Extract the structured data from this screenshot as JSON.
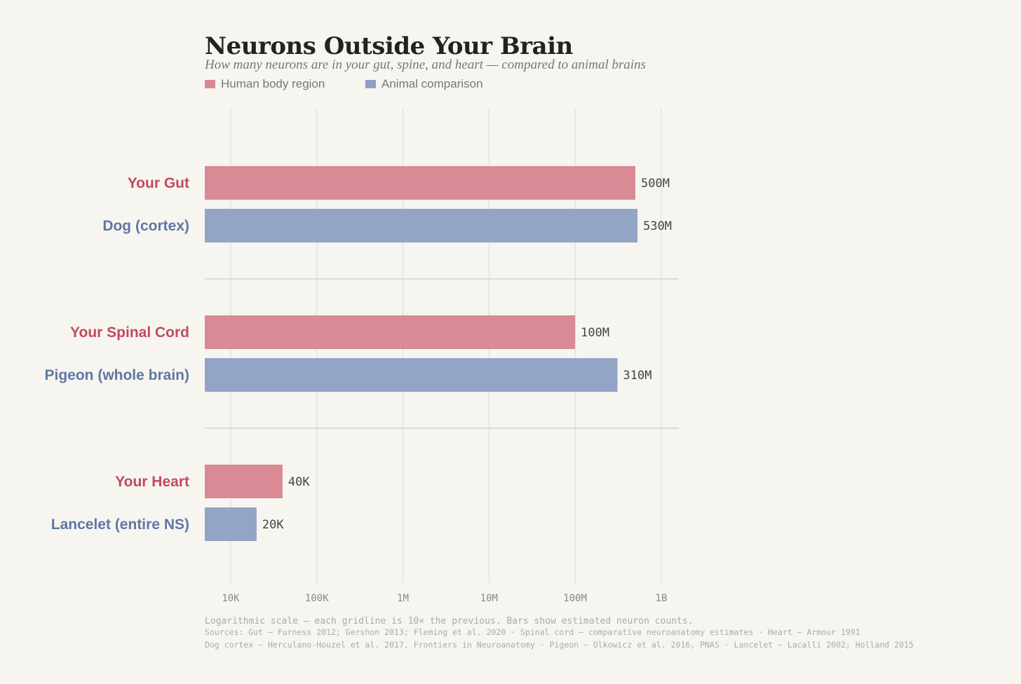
{
  "header": {
    "title": "Neurons Outside Your Brain",
    "subtitle": "How many neurons are in your gut, spine, and heart — compared to animal brains"
  },
  "legend": [
    {
      "label": "Human body region",
      "color": "#d98a94"
    },
    {
      "label": "Animal comparison",
      "color": "#8fa0c6"
    }
  ],
  "colors": {
    "human_bar": "#d98a94",
    "animal_bar": "#93a4c6",
    "human_label": "#c04a60",
    "animal_label": "#5f77a6",
    "grid": "#dcdad4",
    "value_text": "#444444",
    "tick_text": "#888888"
  },
  "chart_data": {
    "type": "bar",
    "orientation": "horizontal",
    "x_scale": "log",
    "xlim": [
      5000,
      2000000000
    ],
    "x_ticks": [
      {
        "value": 10000,
        "label": "10K"
      },
      {
        "value": 100000,
        "label": "100K"
      },
      {
        "value": 1000000,
        "label": "1M"
      },
      {
        "value": 10000000,
        "label": "10M"
      },
      {
        "value": 100000000,
        "label": "100M"
      },
      {
        "value": 1000000000,
        "label": "1B"
      }
    ],
    "grid": true,
    "legend_position": "top-left",
    "groups": [
      {
        "bars": [
          {
            "label": "Your Gut",
            "value": 500000000,
            "value_label": "500M",
            "kind": "human"
          },
          {
            "label": "Dog (cortex)",
            "value": 530000000,
            "value_label": "530M",
            "kind": "animal"
          }
        ]
      },
      {
        "bars": [
          {
            "label": "Your Spinal Cord",
            "value": 100000000,
            "value_label": "100M",
            "kind": "human"
          },
          {
            "label": "Pigeon (whole brain)",
            "value": 310000000,
            "value_label": "310M",
            "kind": "animal"
          }
        ]
      },
      {
        "bars": [
          {
            "label": "Your Heart",
            "value": 40000,
            "value_label": "40K",
            "kind": "human"
          },
          {
            "label": "Lancelet (entire NS)",
            "value": 20000,
            "value_label": "20K",
            "kind": "animal"
          }
        ]
      }
    ]
  },
  "footer": {
    "note": "Logarithmic scale — each gridline is 10× the previous. Bars show estimated neuron counts.",
    "sources_1": "Sources: Gut — Furness 2012; Gershon 2013; Fleming et al. 2020  ·  Spinal cord — comparative neuroanatomy estimates  ·  Heart — Armour 1991",
    "sources_2": "Dog cortex — Herculano-Houzel et al. 2017, Frontiers in Neuroanatomy  ·  Pigeon — Olkowicz et al. 2016, PNAS  ·  Lancelet — Lacalli 2002; Holland 2015"
  }
}
